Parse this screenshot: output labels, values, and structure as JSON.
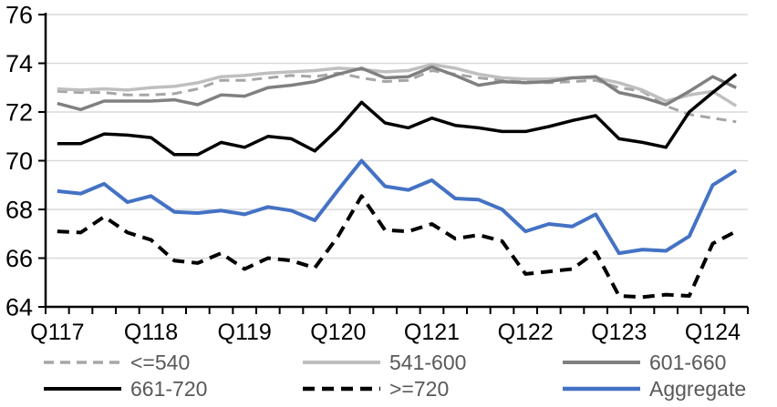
{
  "chart_data": {
    "type": "line",
    "title": "",
    "x_axis": {
      "categories": [
        "Q117",
        "Q217",
        "Q317",
        "Q417",
        "Q118",
        "Q218",
        "Q318",
        "Q418",
        "Q119",
        "Q219",
        "Q319",
        "Q419",
        "Q120",
        "Q220",
        "Q320",
        "Q420",
        "Q121",
        "Q221",
        "Q321",
        "Q421",
        "Q122",
        "Q222",
        "Q322",
        "Q422",
        "Q123",
        "Q223",
        "Q323",
        "Q423",
        "Q124",
        "Q224"
      ],
      "tick_labels": [
        "Q117",
        "Q118",
        "Q119",
        "Q120",
        "Q121",
        "Q122",
        "Q123",
        "Q124"
      ],
      "tick_label_indices": [
        0,
        4,
        8,
        12,
        16,
        20,
        24,
        28
      ]
    },
    "y_axis": {
      "min": 64,
      "max": 76,
      "step": 2,
      "tick_labels": [
        "64",
        "66",
        "68",
        "70",
        "72",
        "74",
        "76"
      ]
    },
    "grid": "horizontal",
    "legend_position": "bottom",
    "series": [
      {
        "name": "le-540",
        "label": "<=540",
        "color": "#a6a6a6",
        "dash": [
          11,
          7
        ],
        "width": 3,
        "values": [
          72.85,
          72.8,
          72.8,
          72.7,
          72.7,
          72.75,
          72.95,
          73.3,
          73.3,
          73.4,
          73.5,
          73.45,
          73.6,
          73.4,
          73.25,
          73.3,
          73.7,
          73.55,
          73.4,
          73.3,
          73.25,
          73.2,
          73.25,
          73.3,
          73.0,
          72.85,
          72.25,
          71.9,
          71.75,
          71.6
        ]
      },
      {
        "name": "541-600",
        "label": "541-600",
        "color": "#bfbfbf",
        "dash": null,
        "width": 3.5,
        "values": [
          72.95,
          72.9,
          72.95,
          72.9,
          73.0,
          73.05,
          73.2,
          73.45,
          73.5,
          73.6,
          73.65,
          73.7,
          73.8,
          73.75,
          73.65,
          73.7,
          73.95,
          73.8,
          73.55,
          73.4,
          73.35,
          73.35,
          73.4,
          73.4,
          73.2,
          72.9,
          72.45,
          72.7,
          72.85,
          72.25
        ]
      },
      {
        "name": "601-660",
        "label": "601-660",
        "color": "#808080",
        "dash": null,
        "width": 3.5,
        "values": [
          72.35,
          72.1,
          72.45,
          72.45,
          72.45,
          72.5,
          72.3,
          72.7,
          72.65,
          73.0,
          73.1,
          73.25,
          73.55,
          73.8,
          73.4,
          73.45,
          73.85,
          73.5,
          73.1,
          73.25,
          73.2,
          73.25,
          73.4,
          73.45,
          72.8,
          72.6,
          72.3,
          72.85,
          73.45,
          73.0
        ]
      },
      {
        "name": "661-720",
        "label": "661-720",
        "color": "#000000",
        "dash": null,
        "width": 3.5,
        "values": [
          70.7,
          70.7,
          71.1,
          71.05,
          70.95,
          70.25,
          70.25,
          70.75,
          70.55,
          71.0,
          70.9,
          70.4,
          71.3,
          72.4,
          71.55,
          71.35,
          71.75,
          71.45,
          71.35,
          71.2,
          71.2,
          71.4,
          71.65,
          71.85,
          70.9,
          70.75,
          70.55,
          72.0,
          72.8,
          73.55
        ]
      },
      {
        "name": "ge-720",
        "label": ">=720",
        "color": "#000000",
        "dash": [
          13,
          8
        ],
        "width": 4,
        "values": [
          67.1,
          67.05,
          67.7,
          67.05,
          66.75,
          65.9,
          65.8,
          66.2,
          65.55,
          66.0,
          65.9,
          65.6,
          66.9,
          68.55,
          67.15,
          67.1,
          67.4,
          66.8,
          66.95,
          66.7,
          65.35,
          65.45,
          65.55,
          66.25,
          64.45,
          64.4,
          64.5,
          64.45,
          66.6,
          67.1
        ]
      },
      {
        "name": "aggregate",
        "label": "Aggregate",
        "color": "#4472c4",
        "dash": null,
        "width": 4,
        "values": [
          68.75,
          68.65,
          69.05,
          68.3,
          68.55,
          67.9,
          67.85,
          67.95,
          67.8,
          68.1,
          67.95,
          67.55,
          68.8,
          70.0,
          68.95,
          68.8,
          69.2,
          68.45,
          68.4,
          68.0,
          67.1,
          67.4,
          67.3,
          67.8,
          66.2,
          66.35,
          66.3,
          66.9,
          69.0,
          69.6
        ]
      }
    ],
    "colors": {
      "gridline": "#d9d9d9",
      "axis": "#000000",
      "tick_label": "#000000",
      "legend_text": "#595959",
      "background": "#ffffff"
    }
  }
}
